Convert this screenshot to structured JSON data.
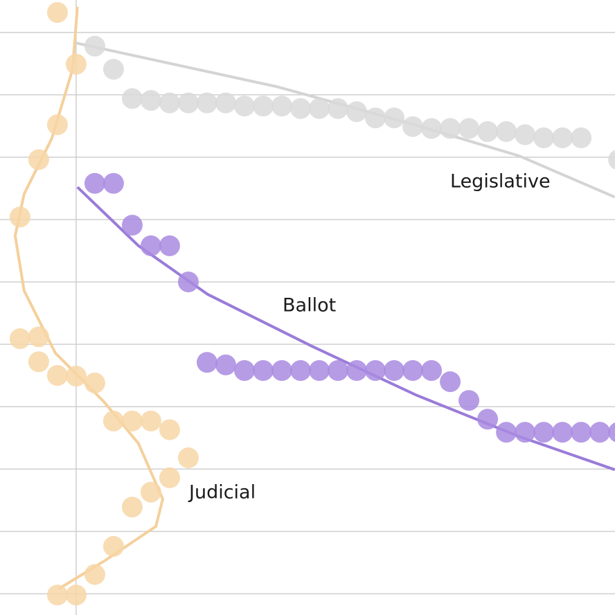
{
  "chart_data": {
    "type": "scatter",
    "xlim": [
      -4.07,
      28.81
    ],
    "xticks": [
      0
    ],
    "ylim": [
      -0.34,
      9.52
    ],
    "yticks": [
      0,
      1,
      2,
      3,
      4,
      5,
      6,
      7,
      8,
      9
    ],
    "grid": true,
    "series": [
      {
        "name": "Legislative",
        "color": "#d9d9d9",
        "line_color": "#d4d4d4",
        "x": [
          1,
          2,
          3,
          4,
          5,
          6,
          7,
          8,
          9,
          10,
          11,
          12,
          13,
          14,
          15,
          16,
          17,
          18,
          19,
          20,
          21,
          22,
          23,
          24,
          25,
          26,
          27,
          29
        ],
        "values": [
          8.78,
          8.41,
          7.94,
          7.91,
          7.87,
          7.87,
          7.87,
          7.87,
          7.82,
          7.82,
          7.82,
          7.78,
          7.78,
          7.78,
          7.73,
          7.63,
          7.63,
          7.49,
          7.46,
          7.46,
          7.46,
          7.41,
          7.41,
          7.36,
          7.31,
          7.31,
          7.31,
          6.96
        ],
        "trend": {
          "x": [
            0,
            10.74,
            18.1,
            23.7,
            28.8
          ],
          "values": [
            8.83,
            8.13,
            7.52,
            7.02,
            6.36
          ]
        }
      },
      {
        "name": "Ballot",
        "color": "#a98be0",
        "line_color": "#9a7bd9",
        "x": [
          1,
          2,
          3,
          4,
          5,
          6,
          7,
          8,
          9,
          10,
          11,
          12,
          13,
          14,
          15,
          16,
          17,
          18,
          19,
          20,
          21,
          22,
          23,
          24,
          25,
          26,
          27,
          28,
          29
        ],
        "values": [
          6.58,
          6.58,
          5.91,
          5.58,
          5.58,
          5.0,
          3.71,
          3.67,
          3.58,
          3.58,
          3.58,
          3.58,
          3.58,
          3.58,
          3.58,
          3.58,
          3.58,
          3.58,
          3.58,
          3.4,
          3.1,
          2.8,
          2.59,
          2.59,
          2.59,
          2.59,
          2.59,
          2.59,
          2.59
        ],
        "trend": {
          "x": [
            0.07,
            3.33,
            7.04,
            12.6,
            18.15,
            23.7,
            28.8
          ],
          "values": [
            6.52,
            5.58,
            4.8,
            3.97,
            3.19,
            2.52,
            1.99
          ]
        }
      },
      {
        "name": "Judicial",
        "color": "#f7d6a6",
        "line_color": "#f4d09c",
        "x": [
          -1,
          0,
          -1,
          -2,
          -3,
          -3,
          -2,
          -2,
          -1,
          0,
          1,
          2,
          3,
          4,
          5,
          6,
          5,
          4,
          3,
          2,
          1,
          -1,
          0
        ],
        "values": [
          9.32,
          8.49,
          7.52,
          6.96,
          6.04,
          4.09,
          4.12,
          3.72,
          3.5,
          3.49,
          3.38,
          2.77,
          2.77,
          2.77,
          2.63,
          2.18,
          1.86,
          1.63,
          1.39,
          0.76,
          0.31,
          -0.02,
          -0.02
        ],
        "trend": {
          "x": [
            0.07,
            -0.19,
            -1.3,
            -2.78,
            -3.26,
            -2.78,
            -1.11,
            1.48,
            3.33,
            4.63,
            4.26,
            1.48,
            -0.93
          ],
          "values": [
            9.41,
            8.41,
            7.3,
            6.41,
            5.74,
            4.86,
            3.86,
            3.08,
            2.41,
            1.52,
            1.08,
            0.52,
            0.08
          ]
        }
      }
    ]
  }
}
